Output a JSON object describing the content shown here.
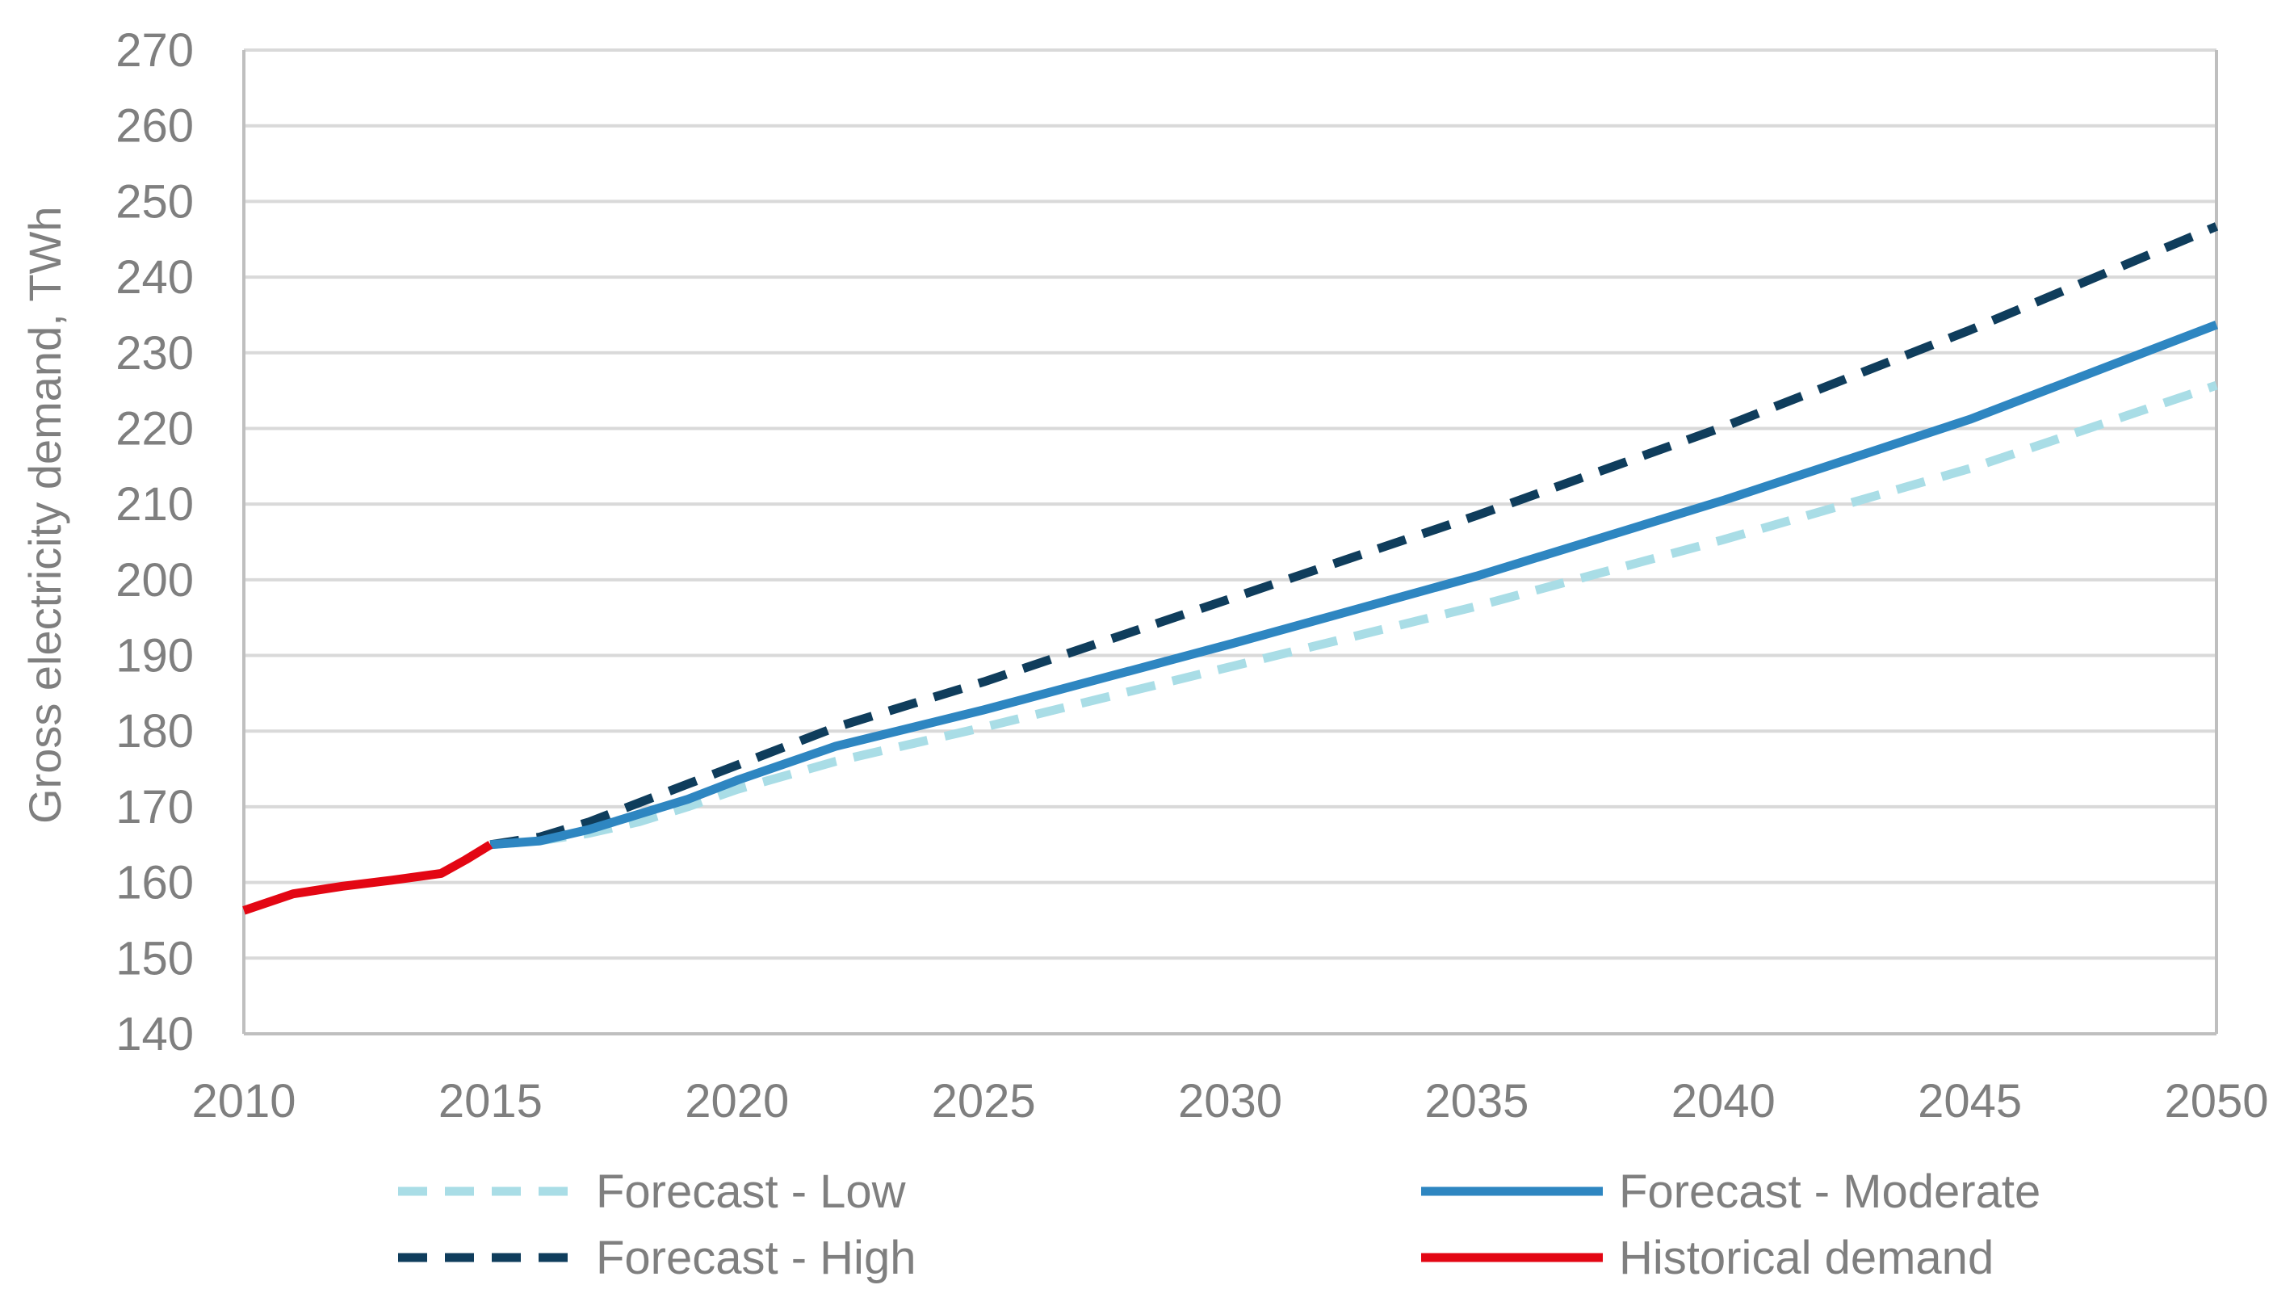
{
  "chart_data": {
    "type": "line",
    "ylabel": "Gross electricity demand, TWh",
    "xlabel": "",
    "xlim": [
      2010,
      2050
    ],
    "ylim": [
      140,
      270
    ],
    "x_ticks": [
      "2010",
      "2015",
      "2020",
      "2025",
      "2030",
      "2035",
      "2040",
      "2045",
      "2050"
    ],
    "y_ticks": [
      "140",
      "150",
      "160",
      "170",
      "180",
      "190",
      "200",
      "210",
      "220",
      "230",
      "240",
      "250",
      "260",
      "270"
    ],
    "grid": "horizontal",
    "legend_position": "bottom",
    "series": [
      {
        "name": "Forecast - Low",
        "style": "dashed",
        "color": "#a9dde6",
        "x": [
          2015,
          2016,
          2017,
          2018,
          2019,
          2020,
          2022,
          2025,
          2030,
          2035,
          2040,
          2045,
          2050
        ],
        "y": [
          165,
          165.5,
          166.5,
          168,
          170,
          172.3,
          176,
          180.5,
          188.5,
          196.5,
          205.3,
          214.7,
          225.7
        ]
      },
      {
        "name": "Forecast - Moderate",
        "style": "solid",
        "color": "#2e86c1",
        "x": [
          2015,
          2016,
          2017,
          2018,
          2019,
          2020,
          2022,
          2025,
          2030,
          2035,
          2040,
          2045,
          2050
        ],
        "y": [
          165,
          165.5,
          167,
          169,
          171,
          173.5,
          178,
          182.8,
          191.5,
          200.5,
          210.5,
          221.2,
          233.7
        ]
      },
      {
        "name": "Forecast - High",
        "style": "dashed",
        "color": "#0f3d5c",
        "x": [
          2015,
          2016,
          2017,
          2018,
          2019,
          2020,
          2022,
          2025,
          2030,
          2035,
          2040,
          2045,
          2050
        ],
        "y": [
          165,
          166,
          168,
          170.5,
          173,
          175.5,
          180.5,
          186.5,
          197.5,
          208.5,
          220.2,
          233,
          246.7
        ]
      },
      {
        "name": "Historical demand",
        "style": "solid",
        "color": "#e30613",
        "x": [
          2010,
          2011,
          2012,
          2013,
          2014,
          2014.5,
          2015
        ],
        "y": [
          156.3,
          158.5,
          159.5,
          160.3,
          161.2,
          163,
          165
        ]
      }
    ],
    "legend": [
      {
        "name": "Forecast - Low",
        "color": "#a9dde6",
        "style": "dashed"
      },
      {
        "name": "Forecast - Moderate",
        "color": "#2e86c1",
        "style": "solid"
      },
      {
        "name": "Forecast - High",
        "color": "#0f3d5c",
        "style": "dashed"
      },
      {
        "name": "Historical demand",
        "color": "#e30613",
        "style": "solid"
      }
    ],
    "colors": {
      "text": "#7f7f7f",
      "grid": "#d9d9d9",
      "axis": "#bfbfbf"
    }
  }
}
